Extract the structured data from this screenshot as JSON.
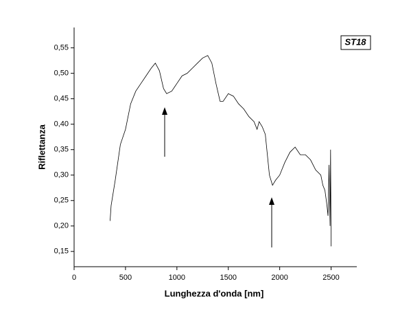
{
  "chart_data": {
    "type": "line",
    "annotation": "ST18",
    "xlabel": "Lunghezza d'onda [nm]",
    "ylabel": "Riflettanza",
    "xlim": [
      0,
      2750
    ],
    "xticks": [
      0,
      500,
      1000,
      1500,
      2000,
      2500
    ],
    "ylim": [
      0.12,
      0.59
    ],
    "yticks": [
      {
        "value": 0.15,
        "label": "0,15"
      },
      {
        "value": 0.2,
        "label": "0,20"
      },
      {
        "value": 0.25,
        "label": "0,25"
      },
      {
        "value": 0.3,
        "label": "0,30"
      },
      {
        "value": 0.35,
        "label": "0,35"
      },
      {
        "value": 0.4,
        "label": "0,40"
      },
      {
        "value": 0.45,
        "label": "0,45"
      },
      {
        "value": 0.5,
        "label": "0,50"
      },
      {
        "value": 0.55,
        "label": "0,55"
      }
    ],
    "series": [
      {
        "color": "#000000",
        "x": [
          350,
          360,
          400,
          450,
          500,
          550,
          600,
          650,
          700,
          750,
          790,
          830,
          870,
          900,
          950,
          1000,
          1050,
          1100,
          1150,
          1200,
          1250,
          1300,
          1340,
          1380,
          1420,
          1450,
          1500,
          1550,
          1600,
          1650,
          1700,
          1750,
          1780,
          1800,
          1830,
          1860,
          1880,
          1900,
          1930,
          1960,
          2000,
          2050,
          2100,
          2150,
          2200,
          2250,
          2300,
          2350,
          2400,
          2420,
          2440,
          2460,
          2470,
          2480,
          2490,
          2495,
          2500
        ],
        "values": [
          0.21,
          0.24,
          0.29,
          0.36,
          0.39,
          0.44,
          0.465,
          0.48,
          0.495,
          0.51,
          0.52,
          0.505,
          0.47,
          0.46,
          0.465,
          0.48,
          0.495,
          0.5,
          0.51,
          0.52,
          0.53,
          0.535,
          0.52,
          0.48,
          0.445,
          0.445,
          0.46,
          0.455,
          0.44,
          0.43,
          0.415,
          0.405,
          0.39,
          0.405,
          0.395,
          0.38,
          0.34,
          0.3,
          0.28,
          0.29,
          0.3,
          0.325,
          0.345,
          0.355,
          0.34,
          0.34,
          0.33,
          0.31,
          0.3,
          0.28,
          0.27,
          0.24,
          0.22,
          0.32,
          0.2,
          0.35,
          0.16
        ]
      }
    ]
  }
}
